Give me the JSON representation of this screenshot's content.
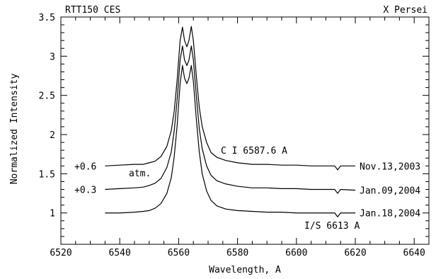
{
  "chart_data": {
    "type": "line",
    "title_left": "RTT150 CES",
    "title_right": "X Persei",
    "xlabel": "Wavelength, A",
    "ylabel": "Normalized Intensity",
    "xlim": [
      6520,
      6645
    ],
    "ylim": [
      0.6,
      3.5
    ],
    "xticks": [
      6520,
      6540,
      6560,
      6580,
      6600,
      6620,
      6640
    ],
    "yticks": [
      1,
      1.5,
      2,
      2.5,
      3,
      3.5
    ],
    "ytick_labels": [
      "1",
      "1.5",
      "2",
      "2.5",
      "3",
      "3.5"
    ],
    "grid": false,
    "series": [
      {
        "name": "Nov.13,2003",
        "offset_label": "+0.6",
        "points": [
          [
            6535,
            1.6
          ],
          [
            6540,
            1.61
          ],
          [
            6545,
            1.62
          ],
          [
            6548,
            1.62
          ],
          [
            6550,
            1.64
          ],
          [
            6552,
            1.66
          ],
          [
            6554,
            1.72
          ],
          [
            6556,
            1.85
          ],
          [
            6557.5,
            2.05
          ],
          [
            6558.5,
            2.3
          ],
          [
            6559.5,
            2.7
          ],
          [
            6560.5,
            3.2
          ],
          [
            6561.3,
            3.37
          ],
          [
            6562,
            3.2
          ],
          [
            6562.8,
            3.12
          ],
          [
            6563.5,
            3.2
          ],
          [
            6564.3,
            3.38
          ],
          [
            6565,
            3.2
          ],
          [
            6566,
            2.75
          ],
          [
            6567,
            2.35
          ],
          [
            6568,
            2.1
          ],
          [
            6569.5,
            1.9
          ],
          [
            6571,
            1.77
          ],
          [
            6573,
            1.71
          ],
          [
            6576,
            1.67
          ],
          [
            6580,
            1.64
          ],
          [
            6585,
            1.62
          ],
          [
            6590,
            1.62
          ],
          [
            6595,
            1.61
          ],
          [
            6600,
            1.61
          ],
          [
            6605,
            1.6
          ],
          [
            6610,
            1.6
          ],
          [
            6613,
            1.6
          ],
          [
            6614,
            1.55
          ],
          [
            6615,
            1.6
          ],
          [
            6620,
            1.6
          ]
        ]
      },
      {
        "name": "Jan.09,2004",
        "offset_label": "+0.3",
        "points": [
          [
            6535,
            1.3
          ],
          [
            6540,
            1.31
          ],
          [
            6545,
            1.32
          ],
          [
            6548,
            1.33
          ],
          [
            6550,
            1.35
          ],
          [
            6552,
            1.38
          ],
          [
            6554,
            1.44
          ],
          [
            6556,
            1.58
          ],
          [
            6557.5,
            1.78
          ],
          [
            6558.5,
            2.05
          ],
          [
            6559.5,
            2.45
          ],
          [
            6560.5,
            2.95
          ],
          [
            6561.3,
            3.13
          ],
          [
            6562,
            2.95
          ],
          [
            6562.8,
            2.88
          ],
          [
            6563.5,
            2.95
          ],
          [
            6564.3,
            3.13
          ],
          [
            6565,
            2.95
          ],
          [
            6566,
            2.5
          ],
          [
            6567,
            2.08
          ],
          [
            6568,
            1.82
          ],
          [
            6569.5,
            1.6
          ],
          [
            6571,
            1.48
          ],
          [
            6573,
            1.41
          ],
          [
            6576,
            1.37
          ],
          [
            6580,
            1.34
          ],
          [
            6585,
            1.32
          ],
          [
            6590,
            1.32
          ],
          [
            6595,
            1.31
          ],
          [
            6600,
            1.31
          ],
          [
            6605,
            1.3
          ],
          [
            6610,
            1.3
          ],
          [
            6613,
            1.3
          ],
          [
            6614,
            1.25
          ],
          [
            6615,
            1.3
          ],
          [
            6620,
            1.29
          ]
        ]
      },
      {
        "name": "Jan.18,2004",
        "offset_label": "",
        "points": [
          [
            6535,
            1.0
          ],
          [
            6540,
            1.0
          ],
          [
            6545,
            1.01
          ],
          [
            6548,
            1.02
          ],
          [
            6550,
            1.03
          ],
          [
            6552,
            1.06
          ],
          [
            6554,
            1.12
          ],
          [
            6556,
            1.25
          ],
          [
            6557.5,
            1.45
          ],
          [
            6558.5,
            1.72
          ],
          [
            6559.5,
            2.12
          ],
          [
            6560.5,
            2.65
          ],
          [
            6561.3,
            2.88
          ],
          [
            6562,
            2.72
          ],
          [
            6562.8,
            2.65
          ],
          [
            6563.5,
            2.72
          ],
          [
            6564.3,
            2.88
          ],
          [
            6565,
            2.68
          ],
          [
            6566,
            2.2
          ],
          [
            6567,
            1.78
          ],
          [
            6568,
            1.5
          ],
          [
            6569.5,
            1.28
          ],
          [
            6571,
            1.16
          ],
          [
            6573,
            1.09
          ],
          [
            6576,
            1.05
          ],
          [
            6580,
            1.03
          ],
          [
            6585,
            1.02
          ],
          [
            6590,
            1.01
          ],
          [
            6595,
            1.01
          ],
          [
            6600,
            1.0
          ],
          [
            6605,
            1.0
          ],
          [
            6610,
            1.0
          ],
          [
            6613,
            1.0
          ],
          [
            6614,
            0.95
          ],
          [
            6615,
            1.0
          ],
          [
            6620,
            1.0
          ]
        ]
      }
    ],
    "annotations": {
      "atm": "atm.",
      "ci": "C I 6587.6 A",
      "is": "I/S 6613 A"
    }
  }
}
